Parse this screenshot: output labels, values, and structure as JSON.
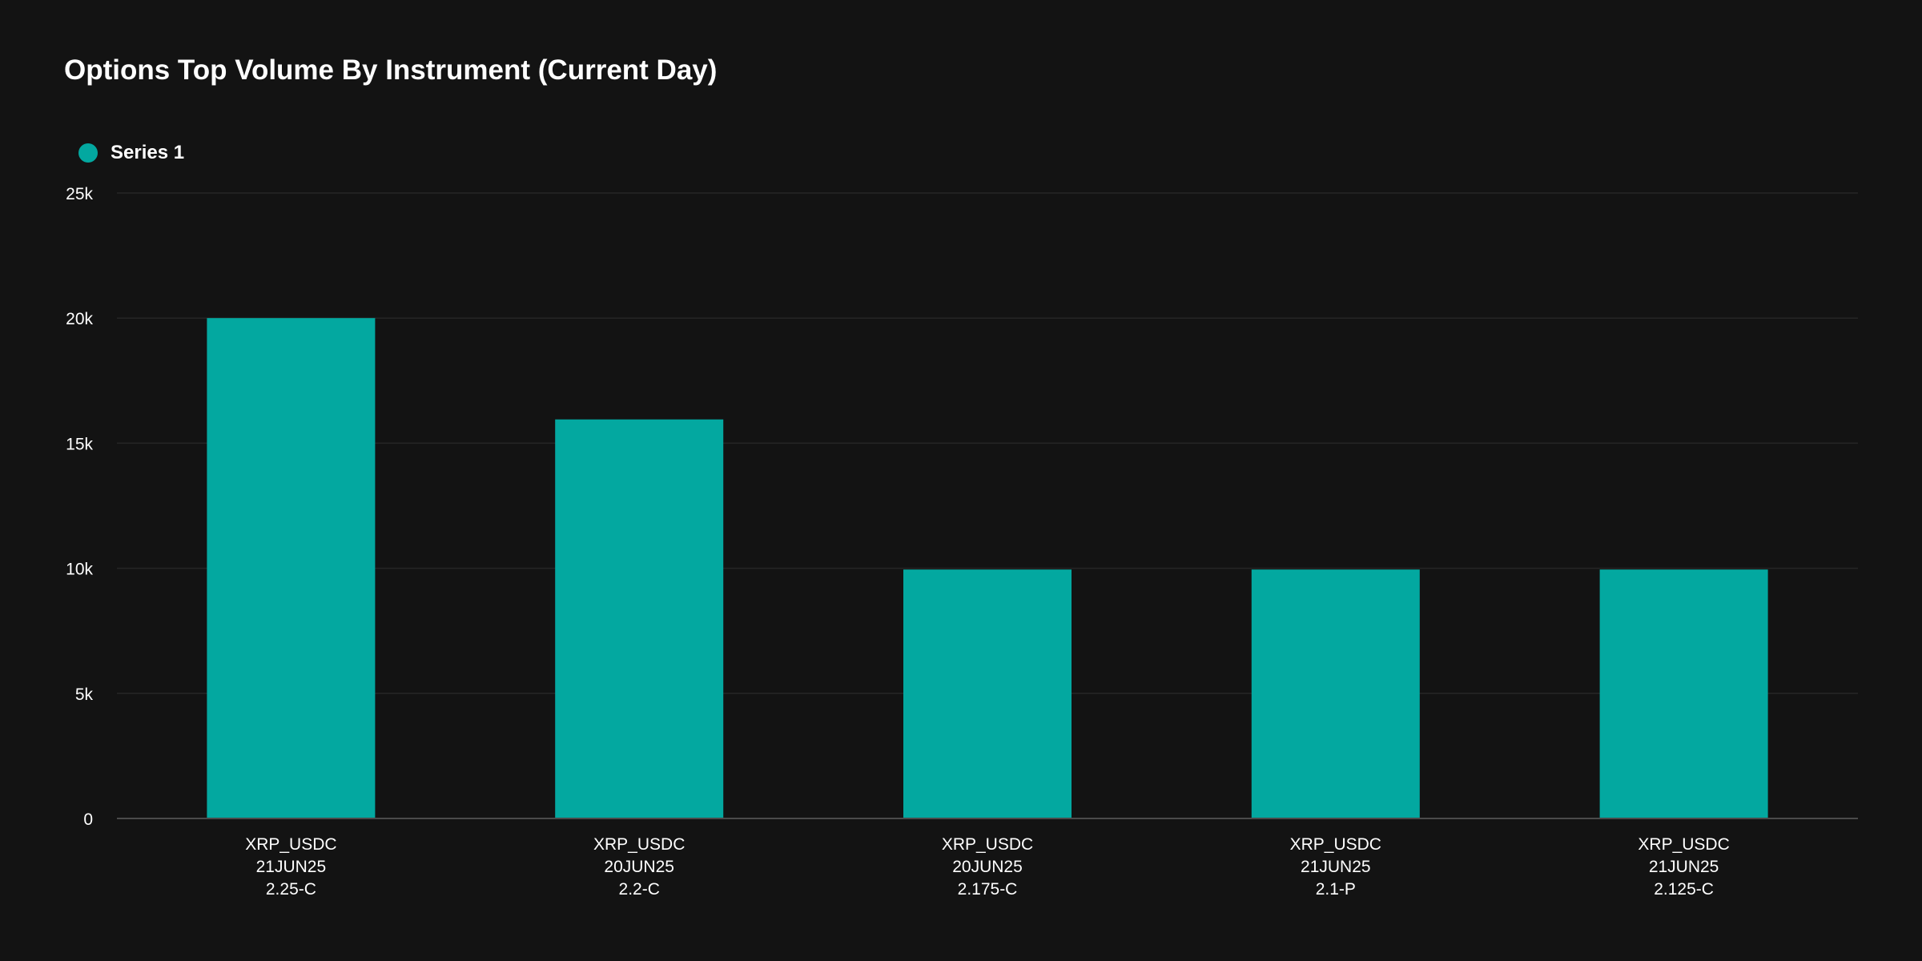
{
  "chart_data": {
    "type": "bar",
    "title": "Options Top Volume By Instrument (Current Day)",
    "xlabel": "",
    "ylabel": "",
    "categories": [
      [
        "XRP_USDC",
        "21JUN25",
        "2.25-C"
      ],
      [
        "XRP_USDC",
        "20JUN25",
        "2.2-C"
      ],
      [
        "XRP_USDC",
        "20JUN25",
        "2.175-C"
      ],
      [
        "XRP_USDC",
        "21JUN25",
        "2.1-P"
      ],
      [
        "XRP_USDC",
        "21JUN25",
        "2.125-C"
      ]
    ],
    "series": [
      {
        "name": "Series 1",
        "color": "#03a8a0",
        "values": [
          20000,
          15950,
          9950,
          9950,
          9950
        ]
      }
    ],
    "ylim": [
      0,
      25000
    ],
    "yticks": [
      0,
      5000,
      10000,
      15000,
      20000,
      25000
    ],
    "ytick_labels": [
      "0",
      "5k",
      "10k",
      "15k",
      "20k",
      "25k"
    ],
    "grid": true,
    "legend_position": "top-left"
  },
  "colors": {
    "background": "#131313",
    "bar": "#03a8a0",
    "grid": "#262626",
    "axis": "#4a4a4a",
    "text": "#ffffff"
  }
}
